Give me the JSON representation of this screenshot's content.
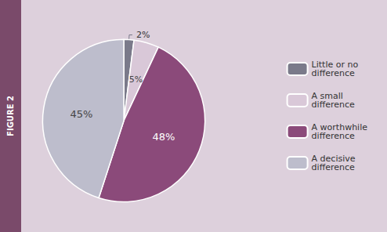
{
  "chart_data": {
    "type": "pie",
    "title": "FIGURE 2",
    "categories": [
      "Little or no\ndifference",
      "A small\ndifference",
      "A worthwhile\ndifference",
      "A decisive\ndifference"
    ],
    "values": [
      2,
      5,
      48,
      45
    ],
    "value_labels": [
      "2%",
      "5%",
      "48%",
      "45%"
    ],
    "colors": [
      "#7a7a8a",
      "#d9c8d8",
      "#8b4a7a",
      "#bdbdcc"
    ],
    "data_labels": true,
    "legend": "right"
  }
}
